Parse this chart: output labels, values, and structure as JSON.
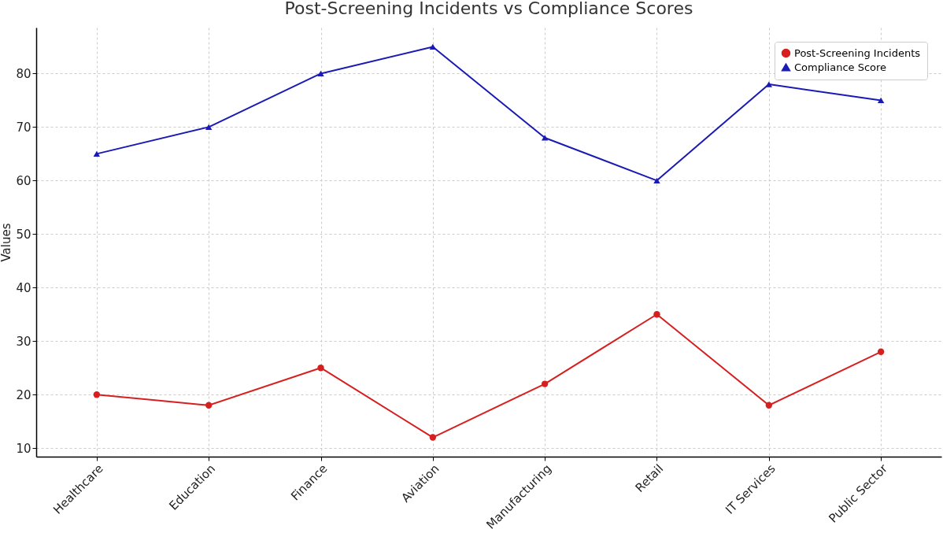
{
  "chart_data": {
    "type": "line",
    "title": "Post-Screening Incidents vs Compliance Scores",
    "ylabel": "Values",
    "categories": [
      "Healthcare",
      "Education",
      "Finance",
      "Aviation",
      "Manufacturing",
      "Retail",
      "IT Services",
      "Public Sector"
    ],
    "series": [
      {
        "name": "Post-Screening Incidents",
        "color": "#d62020",
        "marker": "circle",
        "values": [
          20,
          18,
          25,
          12,
          22,
          35,
          18,
          28
        ]
      },
      {
        "name": "Compliance Score",
        "color": "#1a1ab4",
        "marker": "triangle",
        "values": [
          65,
          70,
          80,
          85,
          68,
          60,
          78,
          75
        ]
      }
    ],
    "ylim": [
      8.4,
      88.6
    ],
    "yticks": [
      10,
      20,
      30,
      40,
      50,
      60,
      70,
      80
    ],
    "grid": true,
    "legend": "top right",
    "line_style": "solid"
  }
}
